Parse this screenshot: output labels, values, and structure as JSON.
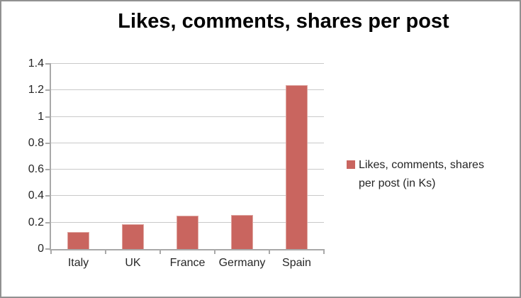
{
  "chart_data": {
    "type": "bar",
    "title": "Likes, comments, shares per post",
    "categories": [
      "Italy",
      "UK",
      "France",
      "Germany",
      "Spain"
    ],
    "values": [
      0.13,
      0.19,
      0.25,
      0.26,
      1.24
    ],
    "series": [
      {
        "name": "Likes, comments, shares per post (in Ks)",
        "values": [
          0.13,
          0.19,
          0.25,
          0.26,
          1.24
        ]
      }
    ],
    "legend_label": "Likes, comments, shares per post (in Ks)",
    "legend_position": "right",
    "xlabel": "",
    "ylabel": "",
    "ylim": [
      0,
      1.4
    ],
    "yticks": [
      0,
      0.2,
      0.4,
      0.6,
      0.8,
      1,
      1.2,
      1.4
    ],
    "grid": true,
    "bar_color": "#C9655F",
    "bar_edge_color": "#DFA6A1",
    "gridline_color": "#C9C9C9",
    "axis_color": "#A9A9A9",
    "frame_border_color": "#919191",
    "text_color": "#262626",
    "title_color": "#000000"
  }
}
